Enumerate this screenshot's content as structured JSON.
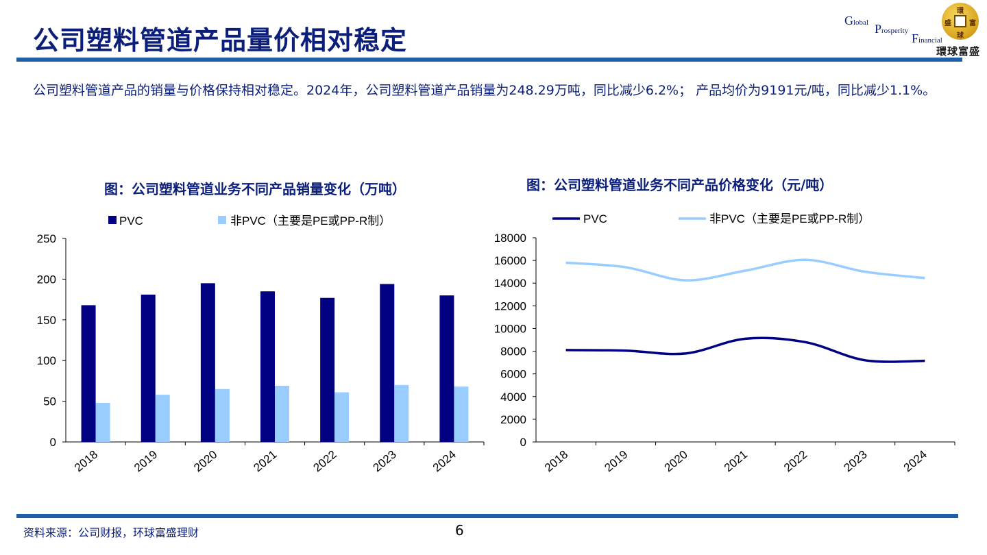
{
  "header": {
    "title": "公司塑料管道产品量价相对稳定"
  },
  "logo": {
    "en_g": "G",
    "en_lobal": "lobal",
    "en_p": "P",
    "en_rosperity": "rosperity",
    "en_f": "F",
    "en_inancial": "inancial",
    "coin_chars": [
      "環",
      "球",
      "富",
      "盛"
    ],
    "cn_name": "環球富盛"
  },
  "intro": {
    "text": "公司塑料管道产品的销量与价格保持相对稳定。2024年，公司塑料管道产品销量为248.29万吨，同比减少6.2%； 产品均价为9191元/吨，同比减少1.1%。"
  },
  "colors": {
    "title_blue": "#0a1e7a",
    "rule_blue": "#1f5fa8",
    "pvc": "#000080",
    "non_pvc": "#99ccff"
  },
  "chart_data": [
    {
      "type": "bar",
      "title": "图：公司塑料管道业务不同产品销量变化（万吨）",
      "categories": [
        "2018",
        "2019",
        "2020",
        "2021",
        "2022",
        "2023",
        "2024"
      ],
      "series": [
        {
          "name": "PVC",
          "values": [
            168,
            181,
            195,
            185,
            177,
            194,
            180
          ]
        },
        {
          "name": "非PVC（主要是PE或PP-R制）",
          "values": [
            48,
            58,
            65,
            69,
            61,
            70,
            68
          ]
        }
      ],
      "ylim": [
        0,
        250
      ],
      "yticks": [
        "0",
        "50",
        "100",
        "150",
        "200",
        "250"
      ],
      "legend_position": "top"
    },
    {
      "type": "line",
      "title": "图：公司塑料管道业务不同产品价格变化（元/吨）",
      "categories": [
        "2018",
        "2019",
        "2020",
        "2021",
        "2022",
        "2023",
        "2024"
      ],
      "series": [
        {
          "name": "PVC",
          "values": [
            8100,
            8050,
            7800,
            9100,
            8800,
            7200,
            7150
          ]
        },
        {
          "name": "非PVC（主要是PE或PP-R制）",
          "values": [
            15800,
            15400,
            14250,
            15100,
            16050,
            15000,
            14450
          ]
        }
      ],
      "ylim": [
        0,
        18000
      ],
      "yticks": [
        "0",
        "2000",
        "4000",
        "6000",
        "8000",
        "10000",
        "12000",
        "14000",
        "16000",
        "18000"
      ],
      "legend_position": "top"
    }
  ],
  "footer": {
    "source": "资料来源：公司财报，环球富盛理财",
    "page_number": "6"
  }
}
